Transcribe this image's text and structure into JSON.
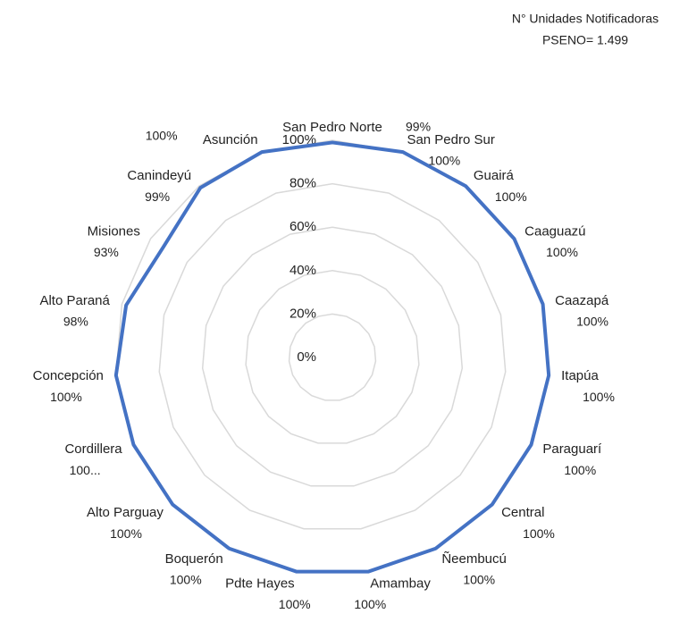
{
  "chart_data": {
    "type": "radar",
    "title": "N° Unidades Notificadoras",
    "subtitle": "PSENO= 1.499",
    "categories": [
      "San Pedro Norte",
      "San Pedro Sur",
      "Guairá",
      "Caaguazú",
      "Caazapá",
      "Itapúa",
      "Paraguarí",
      "Central",
      "Ñeembucú",
      "Amambay",
      "Pdte Hayes",
      "Boquerón",
      "Alto Parguay",
      "Cordillera",
      "Concepción",
      "Alto Paraná",
      "Misiones",
      "Canindeyú",
      "Asunción"
    ],
    "values": [
      99,
      100,
      100,
      100,
      100,
      100,
      100,
      100,
      100,
      100,
      100,
      100,
      100,
      100,
      100,
      98,
      93,
      99,
      100
    ],
    "value_labels": [
      "99%",
      "100%",
      "100%",
      "100%",
      "100%",
      "100%",
      "100%",
      "100%",
      "100%",
      "100%",
      "100%",
      "100%",
      "100%",
      "100...",
      "100%",
      "98%",
      "93%",
      "99%",
      "100%"
    ],
    "color": "#4472c4",
    "rlim": [
      0,
      100
    ],
    "rticks": [
      {
        "value": 0,
        "label": "0%"
      },
      {
        "value": 20,
        "label": "20%"
      },
      {
        "value": 40,
        "label": "40%"
      },
      {
        "value": 60,
        "label": "60%"
      },
      {
        "value": 80,
        "label": "80%"
      },
      {
        "value": 100,
        "label": "100%"
      }
    ],
    "grid": true
  }
}
